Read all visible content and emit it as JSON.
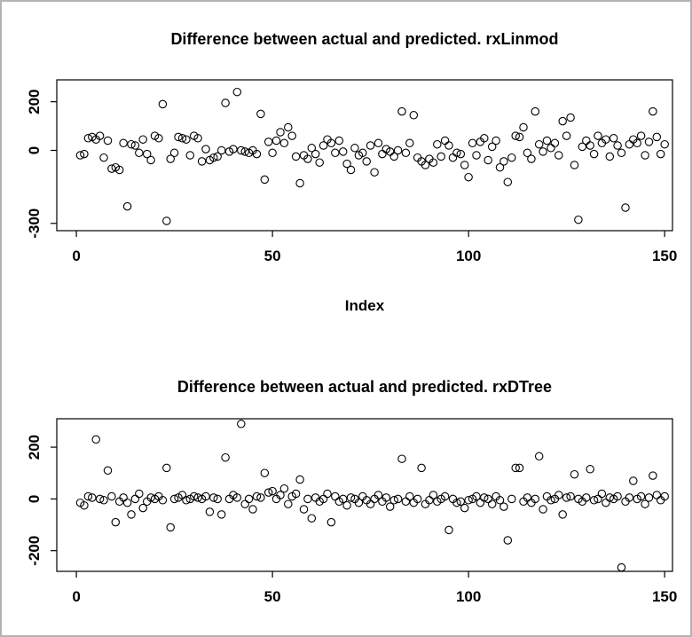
{
  "page": {
    "background": "#ffffff",
    "border_color": "#b3b3b3",
    "point_color": "#000000"
  },
  "chart_data": [
    {
      "type": "scatter",
      "title": "Difference between actual and predicted. rxLinmod",
      "xlabel": "Index",
      "ylabel": "",
      "x_rule": "implicit index 1..150",
      "xlim": [
        -5,
        152
      ],
      "ylim": [
        -330,
        290
      ],
      "x_ticks": [
        0,
        50,
        100,
        150
      ],
      "y_ticks": [
        200,
        0,
        -300
      ],
      "grid": false,
      "marker": "open-circle",
      "y": [
        -20,
        -15,
        50,
        55,
        45,
        60,
        -30,
        40,
        -75,
        -70,
        -80,
        30,
        -230,
        25,
        20,
        -10,
        45,
        -15,
        -40,
        60,
        50,
        190,
        -290,
        -35,
        -10,
        55,
        50,
        45,
        -20,
        60,
        50,
        -45,
        5,
        -40,
        -30,
        -25,
        0,
        195,
        -5,
        5,
        240,
        0,
        -5,
        -10,
        0,
        -15,
        150,
        -120,
        35,
        -10,
        40,
        75,
        30,
        95,
        60,
        -25,
        -135,
        -20,
        -35,
        10,
        -15,
        -50,
        20,
        45,
        30,
        -10,
        40,
        -5,
        -55,
        -80,
        10,
        -20,
        -10,
        -45,
        20,
        -90,
        30,
        -15,
        5,
        -5,
        -25,
        0,
        160,
        -10,
        30,
        145,
        -30,
        -45,
        -60,
        -35,
        -50,
        25,
        -25,
        40,
        20,
        -30,
        -10,
        -15,
        -60,
        -110,
        30,
        -20,
        35,
        50,
        -40,
        15,
        40,
        -70,
        -45,
        -130,
        -30,
        60,
        55,
        95,
        -10,
        -35,
        160,
        25,
        -5,
        40,
        10,
        30,
        -20,
        120,
        60,
        135,
        -60,
        -285,
        15,
        40,
        20,
        -15,
        60,
        30,
        45,
        -25,
        50,
        20,
        -10,
        -235,
        25,
        45,
        30,
        60,
        -20,
        35,
        160,
        55,
        -15,
        25
      ]
    },
    {
      "type": "scatter",
      "title": "Difference between actual and predicted. rxDTree",
      "xlabel": "",
      "ylabel": "",
      "x_rule": "implicit index 1..150",
      "xlim": [
        -5,
        152
      ],
      "ylim": [
        -280,
        310
      ],
      "x_ticks": [
        0,
        50,
        100,
        150
      ],
      "y_ticks": [
        200,
        0,
        -200
      ],
      "grid": false,
      "marker": "open-circle",
      "y": [
        -15,
        -25,
        10,
        5,
        230,
        0,
        -5,
        110,
        10,
        -90,
        -10,
        5,
        -15,
        -60,
        0,
        20,
        -35,
        -10,
        5,
        0,
        10,
        -5,
        120,
        -110,
        0,
        5,
        15,
        -5,
        0,
        10,
        5,
        0,
        10,
        -50,
        5,
        0,
        -60,
        160,
        0,
        15,
        5,
        290,
        -20,
        0,
        -40,
        10,
        5,
        100,
        25,
        30,
        0,
        15,
        40,
        -20,
        10,
        20,
        75,
        -40,
        0,
        -75,
        5,
        -10,
        0,
        20,
        -90,
        10,
        -10,
        0,
        -25,
        5,
        0,
        -15,
        10,
        -5,
        -20,
        0,
        15,
        -10,
        5,
        -30,
        -5,
        0,
        155,
        -10,
        10,
        -15,
        0,
        120,
        -20,
        -5,
        15,
        -10,
        0,
        10,
        -120,
        0,
        -15,
        -10,
        -35,
        -5,
        0,
        10,
        -15,
        5,
        0,
        -20,
        10,
        -5,
        -30,
        -160,
        0,
        120,
        120,
        -10,
        5,
        -15,
        0,
        165,
        -40,
        10,
        -5,
        0,
        15,
        -60,
        5,
        10,
        95,
        0,
        -10,
        5,
        115,
        -5,
        0,
        20,
        -15,
        5,
        0,
        10,
        -265,
        -10,
        5,
        70,
        0,
        10,
        -20,
        5,
        90,
        15,
        -5,
        10
      ]
    }
  ]
}
